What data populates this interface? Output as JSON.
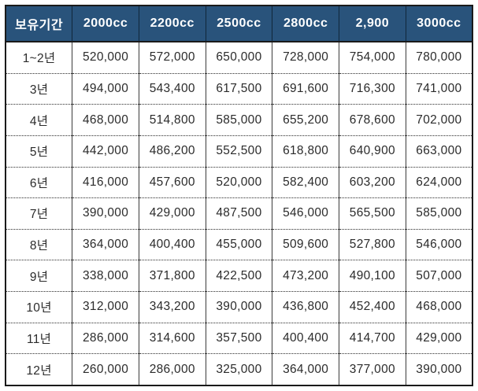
{
  "table": {
    "header": {
      "period_label": "보유기간",
      "columns": [
        "2000cc",
        "2200cc",
        "2500cc",
        "2800cc",
        "2,900",
        "3000cc"
      ]
    },
    "rows": [
      {
        "period": "1~2년",
        "values": [
          "520,000",
          "572,000",
          "650,000",
          "728,000",
          "754,000",
          "780,000"
        ]
      },
      {
        "period": "3년",
        "values": [
          "494,000",
          "543,400",
          "617,500",
          "691,600",
          "716,300",
          "741,000"
        ]
      },
      {
        "period": "4년",
        "values": [
          "468,000",
          "514,800",
          "585,000",
          "655,200",
          "678,600",
          "702,000"
        ]
      },
      {
        "period": "5년",
        "values": [
          "442,000",
          "486,200",
          "552,500",
          "618,800",
          "640,900",
          "663,000"
        ]
      },
      {
        "period": "6년",
        "values": [
          "416,000",
          "457,600",
          "520,000",
          "582,400",
          "603,200",
          "624,000"
        ]
      },
      {
        "period": "7년",
        "values": [
          "390,000",
          "429,000",
          "487,500",
          "546,000",
          "565,500",
          "585,000"
        ]
      },
      {
        "period": "8년",
        "values": [
          "364,000",
          "400,400",
          "455,000",
          "509,600",
          "527,800",
          "546,000"
        ]
      },
      {
        "period": "9년",
        "values": [
          "338,000",
          "371,800",
          "422,500",
          "473,200",
          "490,100",
          "507,000"
        ]
      },
      {
        "period": "10년",
        "values": [
          "312,000",
          "343,200",
          "390,000",
          "436,800",
          "452,400",
          "468,000"
        ]
      },
      {
        "period": "11년",
        "values": [
          "286,000",
          "314,600",
          "357,500",
          "400,400",
          "414,700",
          "429,000"
        ]
      },
      {
        "period": "12년",
        "values": [
          "260,000",
          "286,000",
          "325,000",
          "364,000",
          "377,000",
          "390,000"
        ]
      }
    ]
  },
  "colors": {
    "header_bg": "#29537B",
    "header_text": "#FFFFFF",
    "cell_text": "#2B2B2B",
    "outer_border": "#1A1A1A"
  },
  "chart_data": {
    "type": "table",
    "row_header_label": "보유기간",
    "columns": [
      "2000cc",
      "2200cc",
      "2500cc",
      "2800cc",
      "2,900",
      "3000cc"
    ],
    "row_labels": [
      "1~2년",
      "3년",
      "4년",
      "5년",
      "6년",
      "7년",
      "8년",
      "9년",
      "10년",
      "11년",
      "12년"
    ],
    "values": [
      [
        520000,
        572000,
        650000,
        728000,
        754000,
        780000
      ],
      [
        494000,
        543400,
        617500,
        691600,
        716300,
        741000
      ],
      [
        468000,
        514800,
        585000,
        655200,
        678600,
        702000
      ],
      [
        442000,
        486200,
        552500,
        618800,
        640900,
        663000
      ],
      [
        416000,
        457600,
        520000,
        582400,
        603200,
        624000
      ],
      [
        390000,
        429000,
        487500,
        546000,
        565500,
        585000
      ],
      [
        364000,
        400400,
        455000,
        509600,
        527800,
        546000
      ],
      [
        338000,
        371800,
        422500,
        473200,
        490100,
        507000
      ],
      [
        312000,
        343200,
        390000,
        436800,
        452400,
        468000
      ],
      [
        286000,
        314600,
        357500,
        400400,
        414700,
        429000
      ],
      [
        260000,
        286000,
        325000,
        364000,
        377000,
        390000
      ]
    ]
  }
}
